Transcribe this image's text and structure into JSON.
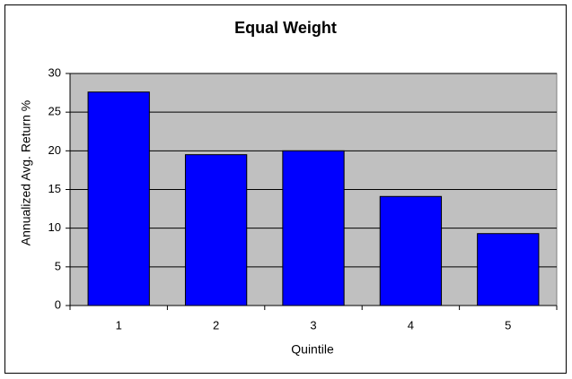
{
  "chart_data": {
    "type": "bar",
    "title": "Equal Weight",
    "x_label": "Quintile",
    "y_label": "Annualized Avg. Return %",
    "categories": [
      "1",
      "2",
      "3",
      "4",
      "5"
    ],
    "values": [
      27.6,
      19.5,
      20.0,
      14.1,
      9.3
    ],
    "color": "#0000ff",
    "ylim": [
      0,
      30
    ],
    "yticks": [
      0,
      5,
      10,
      15,
      20,
      25,
      30
    ],
    "grid": true
  }
}
